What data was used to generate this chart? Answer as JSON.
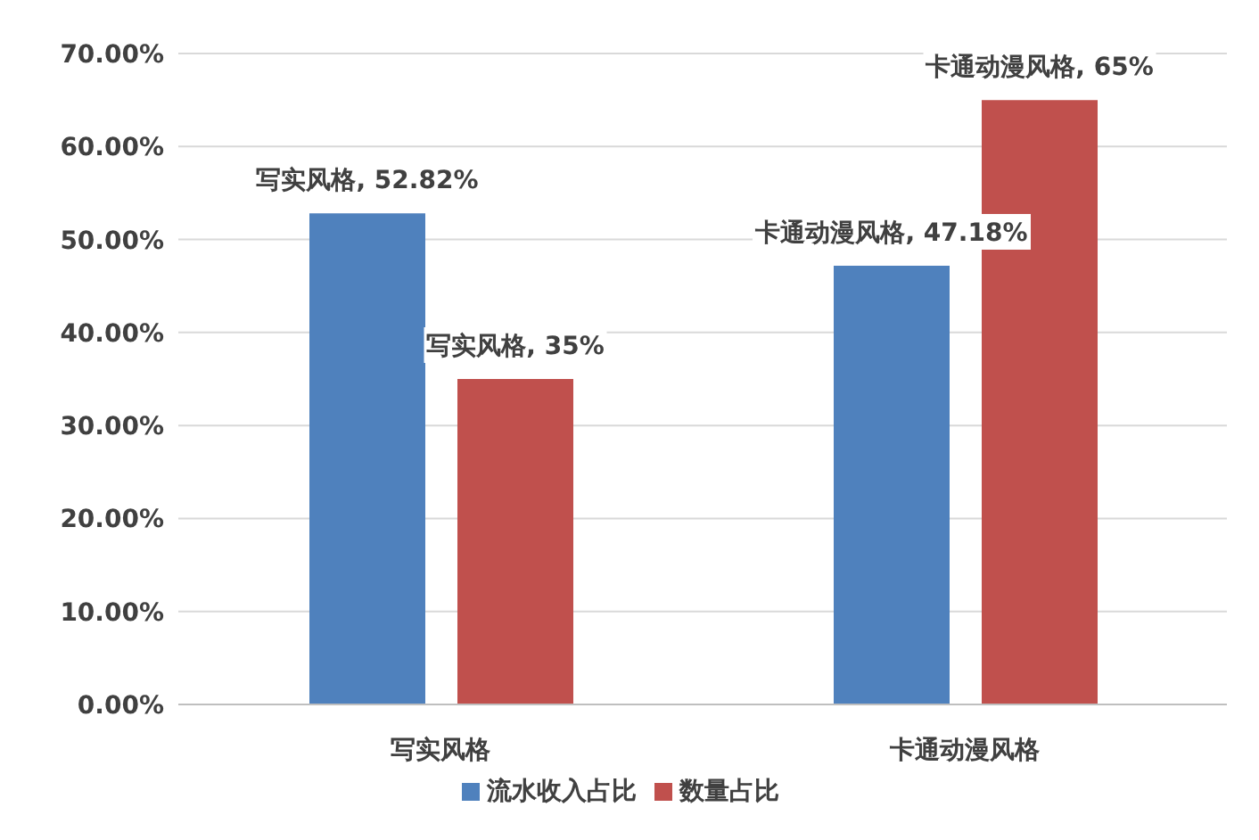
{
  "chart_data": {
    "type": "bar",
    "categories": [
      "写实风格",
      "卡通动漫风格"
    ],
    "series": [
      {
        "name": "流水收入占比",
        "color": "#4f81bd",
        "values": [
          52.82,
          47.18
        ],
        "value_labels": [
          "写实风格, 52.82%",
          "卡通动漫风格, 47.18%"
        ]
      },
      {
        "name": "数量占比",
        "color": "#c0504d",
        "values": [
          35,
          65
        ],
        "value_labels": [
          "写实风格, 35%",
          "卡通动漫风格, 65%"
        ]
      }
    ],
    "ylim": [
      0,
      70
    ],
    "yticks": [
      {
        "value": 0,
        "label": "0.00%"
      },
      {
        "value": 10,
        "label": "10.00%"
      },
      {
        "value": 20,
        "label": "20.00%"
      },
      {
        "value": 30,
        "label": "30.00%"
      },
      {
        "value": 40,
        "label": "40.00%"
      },
      {
        "value": 50,
        "label": "50.00%"
      },
      {
        "value": 60,
        "label": "60.00%"
      },
      {
        "value": 70,
        "label": "70.00%"
      }
    ],
    "grid": "y",
    "legend": "bottom"
  }
}
